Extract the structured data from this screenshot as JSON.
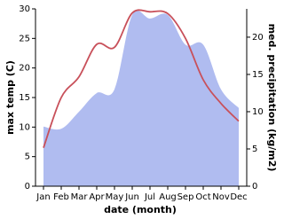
{
  "chart_data": {
    "type": "line-area",
    "x_label": "date (month)",
    "y_label": "max temp (C)",
    "y2_label": "med. precipitation (kg/m2)",
    "categories": [
      "Jan",
      "Feb",
      "Mar",
      "Apr",
      "May",
      "Jun",
      "Jul",
      "Aug",
      "Sep",
      "Oct",
      "Nov",
      "Dec"
    ],
    "series": [
      {
        "name": "max temp",
        "color": "#c8505a",
        "values": [
          6.5,
          15,
          18.5,
          24,
          23.5,
          29.3,
          29.5,
          29.2,
          25,
          18,
          14,
          11
        ]
      },
      {
        "name": "med. precipitation",
        "color": "#b0bcf0",
        "axis": "y2",
        "values": [
          8,
          7.7,
          10,
          12.5,
          13,
          23,
          22.5,
          23,
          19,
          19,
          13,
          10.5
        ]
      }
    ],
    "ylim": [
      0,
      30
    ],
    "yticks": [
      0,
      5,
      10,
      15,
      20,
      25,
      30
    ],
    "y2lim": [
      0,
      23.8
    ],
    "y2ticks": [
      0,
      5,
      10,
      15,
      20
    ]
  }
}
